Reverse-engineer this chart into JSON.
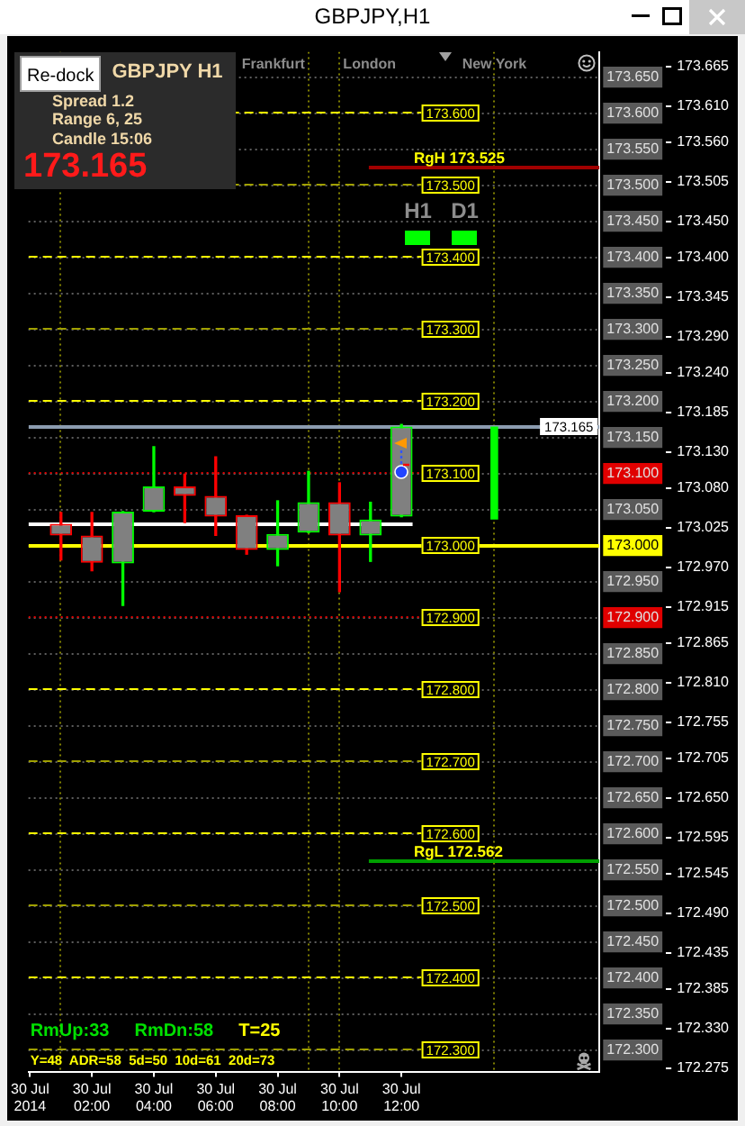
{
  "chart_data": {
    "type": "candlestick",
    "title": "GBPJPY,H1",
    "series": [
      {
        "color": "#808080",
        "x": [
          "2014-07-30T01:00",
          "2014-07-30T02:00",
          "2014-07-30T03:00",
          "2014-07-30T04:00",
          "2014-07-30T05:00",
          "2014-07-30T06:00",
          "2014-07-30T07:00",
          "2014-07-30T08:00",
          "2014-07-30T09:00",
          "2014-07-30T10:00",
          "2014-07-30T11:00",
          "2014-07-30T12:00"
        ],
        "ohlc": [
          [
            173.03,
            173.046,
            172.98,
            173.014
          ],
          [
            173.014,
            173.046,
            172.965,
            172.976
          ],
          [
            172.975,
            173.047,
            172.917,
            173.047
          ],
          [
            173.047,
            173.137,
            173.047,
            173.082
          ],
          [
            173.082,
            173.099,
            173.032,
            173.069
          ],
          [
            173.069,
            173.123,
            173.014,
            173.04
          ],
          [
            173.042,
            173.042,
            172.988,
            172.994
          ],
          [
            172.994,
            173.062,
            172.972,
            173.016
          ],
          [
            173.018,
            173.103,
            173.018,
            173.06
          ],
          [
            173.06,
            173.087,
            172.936,
            173.014
          ],
          [
            173.014,
            173.06,
            172.978,
            173.036
          ],
          [
            173.04,
            173.168,
            173.04,
            173.165
          ]
        ],
        "colors": [
          "#ff0000",
          "#ff0000",
          "#00ff00",
          "#00ff00",
          "#ff0000",
          "#ff0000",
          "#ff0000",
          "#00ff00",
          "#00ff00",
          "#ff0000",
          "#00ff00",
          "#00ff00"
        ]
      },
      {
        "type": "bar",
        "color": "#00ff00",
        "x": [
          "2014-07-30T15:00"
        ],
        "base": [
          173.036
        ],
        "values": [
          0.129
        ]
      }
    ],
    "xlim": [
      "2014-07-29T23:57",
      "2014-07-30T18:24"
    ],
    "xticks": [
      {
        "value": "2014-07-30T00:00",
        "label": "30 Jul 2014"
      },
      {
        "value": "2014-07-30T02:00",
        "label": "30 Jul 02:00"
      },
      {
        "value": "2014-07-30T04:00",
        "label": "30 Jul 04:00"
      },
      {
        "value": "2014-07-30T06:00",
        "label": "30 Jul 06:00"
      },
      {
        "value": "2014-07-30T08:00",
        "label": "30 Jul 08:00"
      },
      {
        "value": "2014-07-30T10:00",
        "label": "30 Jul 10:00"
      },
      {
        "value": "2014-07-30T12:00",
        "label": "30 Jul 12:00"
      }
    ],
    "ylim": [
      172.27,
      173.685
    ],
    "yticks": [
      {
        "value": 172.3,
        "label": "172.300"
      },
      {
        "value": 172.35,
        "label": "172.350"
      },
      {
        "value": 172.4,
        "label": "172.400"
      },
      {
        "value": 172.45,
        "label": "172.450"
      },
      {
        "value": 172.5,
        "label": "172.500"
      },
      {
        "value": 172.55,
        "label": "172.550"
      },
      {
        "value": 172.6,
        "label": "172.600"
      },
      {
        "value": 172.65,
        "label": "172.650"
      },
      {
        "value": 172.7,
        "label": "172.700"
      },
      {
        "value": 172.75,
        "label": "172.750"
      },
      {
        "value": 172.8,
        "label": "172.800"
      },
      {
        "value": 172.85,
        "label": "172.850"
      },
      {
        "value": 172.9,
        "label": "172.900"
      },
      {
        "value": 172.95,
        "label": "172.950"
      },
      {
        "value": 173,
        "label": "173.000"
      },
      {
        "value": 173.05,
        "label": "173.050"
      },
      {
        "value": 173.1,
        "label": "173.100"
      },
      {
        "value": 173.15,
        "label": "173.150"
      },
      {
        "value": 173.2,
        "label": "173.200"
      },
      {
        "value": 173.25,
        "label": "173.250"
      },
      {
        "value": 173.3,
        "label": "173.300"
      },
      {
        "value": 173.35,
        "label": "173.350"
      },
      {
        "value": 173.4,
        "label": "173.400"
      },
      {
        "value": 173.45,
        "label": "173.450"
      },
      {
        "value": 173.5,
        "label": "173.500"
      },
      {
        "value": 173.55,
        "label": "173.550"
      },
      {
        "value": 173.6,
        "label": "173.600"
      },
      {
        "value": 173.65,
        "label": "173.650"
      }
    ],
    "y2lim": [
      172.27,
      173.685
    ],
    "y2ticks": [
      172.275,
      {
        "value": 172.33,
        "label": "172.330"
      },
      172.385,
      172.435,
      {
        "value": 172.49,
        "label": "172.490"
      },
      172.545,
      172.595,
      {
        "value": 172.65,
        "label": "172.650"
      },
      172.705,
      172.755,
      {
        "value": 172.81,
        "label": "172.810"
      },
      172.865,
      172.915,
      {
        "value": 172.97,
        "label": "172.970"
      },
      173.025,
      {
        "value": 173.08,
        "label": "173.080"
      },
      {
        "value": 173.13,
        "label": "173.130"
      },
      173.185,
      {
        "value": 173.24,
        "label": "173.240"
      },
      {
        "value": 173.29,
        "label": "173.290"
      },
      173.345,
      {
        "value": 173.4,
        "label": "173.400"
      },
      {
        "value": 173.45,
        "label": "173.450"
      },
      173.505,
      {
        "value": 173.56,
        "label": "173.560"
      },
      {
        "value": 173.61,
        "label": "173.610"
      },
      173.665
    ],
    "grid": "y",
    "ref_lines": [
      {
        "axis": "x",
        "value": "2014-07-30T01:00",
        "color": "#808000",
        "line_style": "dotted"
      },
      {
        "axis": "x",
        "value": "2014-07-30T09:00",
        "label": "Frankfurt",
        "color": "#808000",
        "line_style": "dotted"
      },
      {
        "axis": "x",
        "value": "2014-07-30T10:00",
        "label": "London",
        "color": "#808000",
        "line_style": "dotted"
      },
      {
        "axis": "x",
        "value": "2014-07-30T15:00",
        "label": "New York",
        "color": "#808000",
        "line_style": "dotted"
      },
      {
        "axis": "y",
        "value": 173.6,
        "label": "173.600",
        "color": "#ffff00",
        "line_style": "dashed"
      },
      {
        "axis": "y",
        "value": 173.5,
        "label": "173.500",
        "color": "#a0a000",
        "line_style": "dashed"
      },
      {
        "axis": "y",
        "value": 173.4,
        "label": "173.400",
        "color": "#ffff00",
        "line_style": "dashed"
      },
      {
        "axis": "y",
        "value": 173.3,
        "label": "173.300",
        "color": "#a0a000",
        "line_style": "dashed"
      },
      {
        "axis": "y",
        "value": 173.2,
        "label": "173.200",
        "color": "#ffff00",
        "line_style": "dashed"
      },
      {
        "axis": "y",
        "value": 173.1,
        "label": "173.100",
        "color": "#e00000",
        "line_style": "dotted"
      },
      {
        "axis": "y",
        "value": 173,
        "label": "173.000",
        "color": "#ffff00",
        "line_style": "solid"
      },
      {
        "axis": "y",
        "value": 172.9,
        "label": "172.900",
        "color": "#e00000",
        "line_style": "dotted"
      },
      {
        "axis": "y",
        "value": 172.8,
        "label": "172.800",
        "color": "#ffff00",
        "line_style": "dashed"
      },
      {
        "axis": "y",
        "value": 172.7,
        "label": "172.700",
        "color": "#a0a000",
        "line_style": "dashed"
      },
      {
        "axis": "y",
        "value": 172.6,
        "label": "172.600",
        "color": "#ffff00",
        "line_style": "dashed"
      },
      {
        "axis": "y",
        "value": 172.5,
        "label": "172.500",
        "color": "#a0a000",
        "line_style": "dashed"
      },
      {
        "axis": "y",
        "value": 172.4,
        "label": "172.400",
        "color": "#ffff00",
        "line_style": "dashed"
      },
      {
        "axis": "y",
        "value": 172.3,
        "label": "172.300",
        "color": "#a0a000",
        "line_style": "dashed"
      },
      {
        "axis": "y",
        "value": 173.029,
        "color": "#ffffff",
        "line_style": "solid"
      },
      {
        "axis": "y",
        "value": 173.165,
        "label": "173.165",
        "color": "#8c9cb0",
        "line_style": "solid"
      },
      {
        "axis": "y",
        "value": 173.525,
        "color": "#a00000",
        "line_style": "solid"
      },
      {
        "axis": "y",
        "value": 172.562,
        "color": "#00a000",
        "line_style": "solid"
      }
    ],
    "annotations": [
      "Re-dock",
      "GBPJPY H1",
      "Spread 1.2",
      "Range 6, 25",
      "Candle 15:06",
      "173.165",
      "H1",
      "D1",
      "RmUp:33",
      "RmDn:58",
      "T=25",
      "Y=48  ADR=58  5d=50  10d=61  20d=73",
      {
        "text": "RgH 173.525",
        "x": "2014-07-30T12:24",
        "y": 173.525
      },
      {
        "text": "RgL 172.562",
        "x": "2014-07-30T12:24",
        "y": 172.562
      }
    ]
  }
}
